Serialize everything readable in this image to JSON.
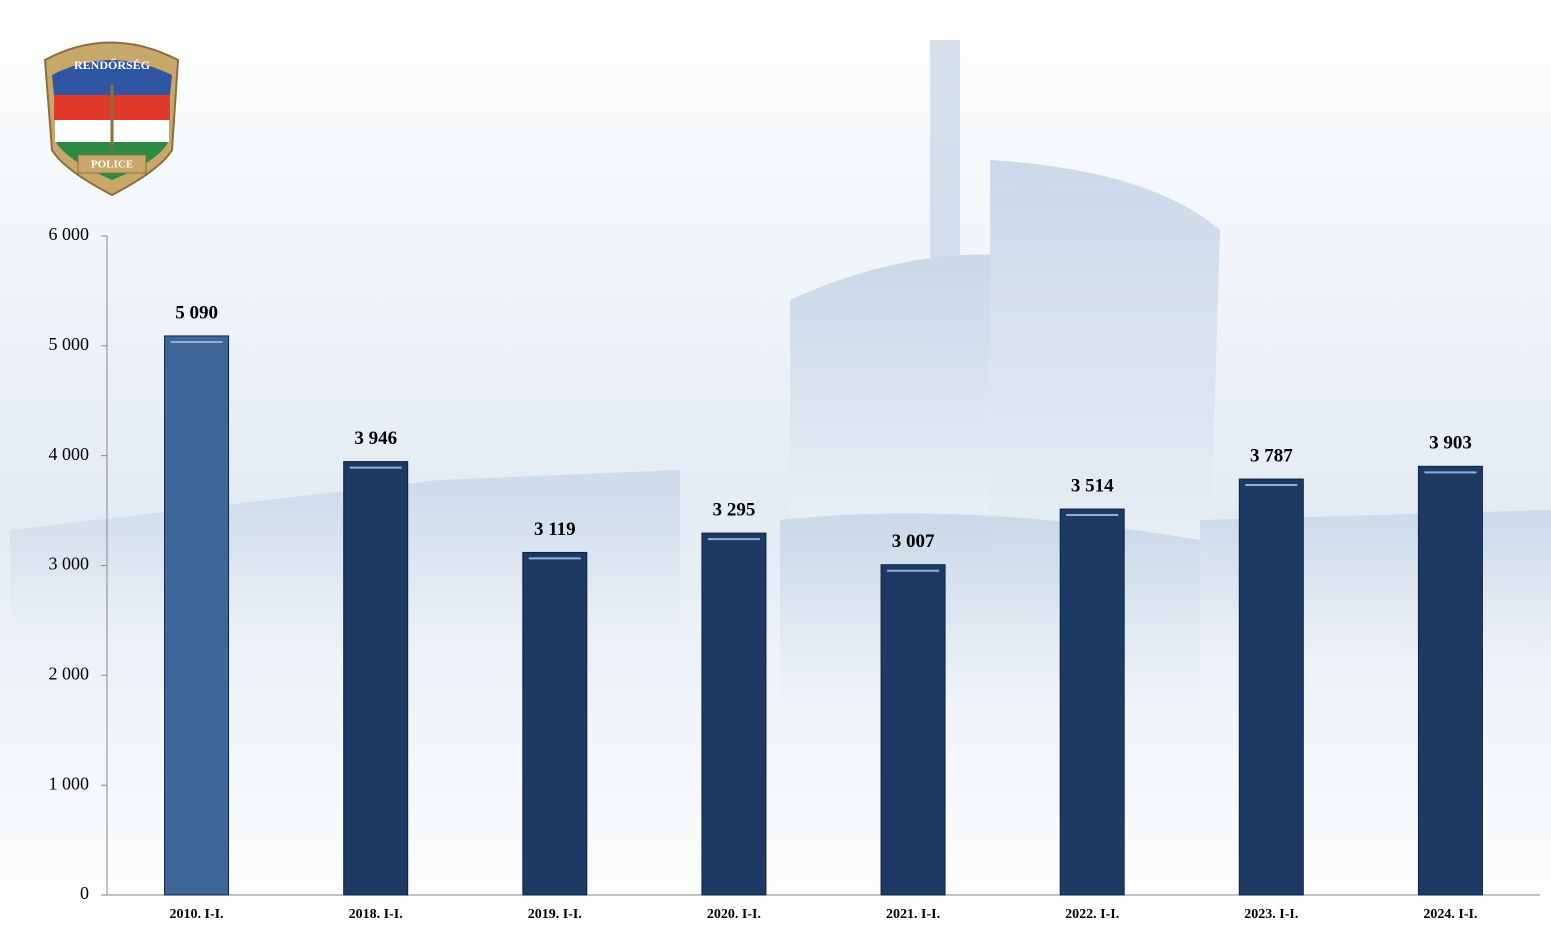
{
  "logo": {
    "top_text": "RENDŐRSÉG",
    "bottom_text": "POLICE"
  },
  "chart_data": {
    "type": "bar",
    "categories": [
      "2010. I-I.",
      "2018. I-I.",
      "2019. I-I.",
      "2020. I-I.",
      "2021. I-I.",
      "2022. I-I.",
      "2023. I-I.",
      "2024. I-I."
    ],
    "values": [
      5090,
      3946,
      3119,
      3295,
      3007,
      3514,
      3787,
      3903
    ],
    "value_labels": [
      "5 090",
      "3 946",
      "3 119",
      "3 295",
      "3 007",
      "3 514",
      "3 787",
      "3 903"
    ],
    "colors": [
      "#3e6699",
      "#1e3a64",
      "#1e3a64",
      "#1e3a64",
      "#1e3a64",
      "#1e3a64",
      "#1e3a64",
      "#1e3a64"
    ],
    "ylim": [
      0,
      6000
    ],
    "yticks": [
      0,
      {
        "value": 1000,
        "label": "1 000"
      },
      {
        "value": 2000,
        "label": "2 000"
      },
      {
        "value": 3000,
        "label": "3 000"
      },
      {
        "value": 4000,
        "label": "4 000"
      },
      {
        "value": 5000,
        "label": "5 000"
      },
      {
        "value": 6000,
        "label": "6 000"
      }
    ],
    "grid": false
  }
}
